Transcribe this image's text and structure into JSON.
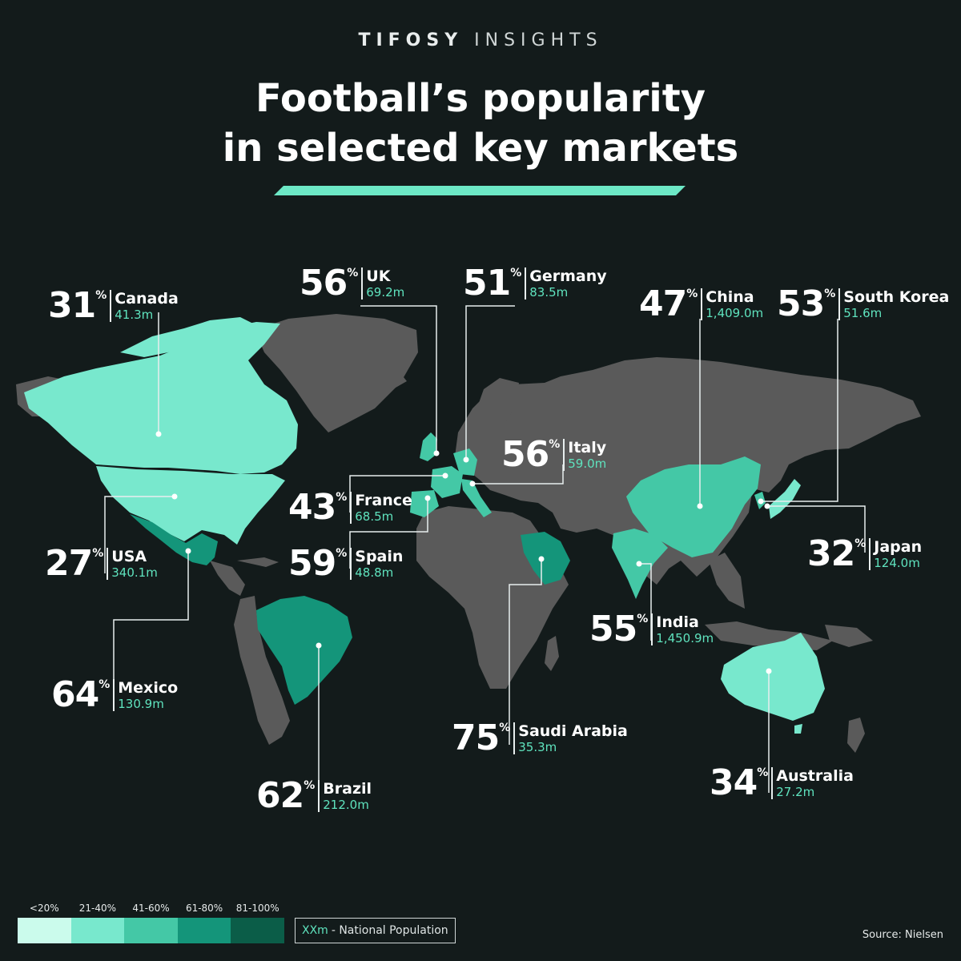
{
  "header": {
    "brand_bold": "TIFOSY",
    "brand_light": "INSIGHTS",
    "title_line1": "Football’s popularity",
    "title_line2": "in selected key markets"
  },
  "colors": {
    "background": "#131b1b",
    "land_other": "#5a5a5a",
    "accent_bar": "#6de8c6",
    "tier_under_20": "#cbfbec",
    "tier_21_40": "#78e8cd",
    "tier_41_60": "#44c8a6",
    "tier_61_80": "#14957a",
    "tier_81_100": "#0b5d48",
    "population_text": "#5fe3be"
  },
  "countries": [
    {
      "name": "Canada",
      "percent": "31",
      "population": "41.3m"
    },
    {
      "name": "UK",
      "percent": "56",
      "population": "69.2m"
    },
    {
      "name": "Germany",
      "percent": "51",
      "population": "83.5m"
    },
    {
      "name": "China",
      "percent": "47",
      "population": "1,409.0m"
    },
    {
      "name": "South Korea",
      "percent": "53",
      "population": "51.6m"
    },
    {
      "name": "Italy",
      "percent": "56",
      "population": "59.0m"
    },
    {
      "name": "France",
      "percent": "43",
      "population": "68.5m"
    },
    {
      "name": "USA",
      "percent": "27",
      "population": "340.1m"
    },
    {
      "name": "Spain",
      "percent": "59",
      "population": "48.8m"
    },
    {
      "name": "Japan",
      "percent": "32",
      "population": "124.0m"
    },
    {
      "name": "India",
      "percent": "55",
      "population": "1,450.9m"
    },
    {
      "name": "Mexico",
      "percent": "64",
      "population": "130.9m"
    },
    {
      "name": "Saudi Arabia",
      "percent": "75",
      "population": "35.3m"
    },
    {
      "name": "Australia",
      "percent": "34",
      "population": "27.2m"
    },
    {
      "name": "Brazil",
      "percent": "62",
      "population": "212.0m"
    }
  ],
  "percent_sign": "%",
  "legend": {
    "tiers": [
      "<20%",
      "21-40%",
      "41-60%",
      "61-80%",
      "81-100%"
    ],
    "population_key_code": "XXm",
    "population_key_text": "- National Population"
  },
  "source": "Source: Nielsen"
}
